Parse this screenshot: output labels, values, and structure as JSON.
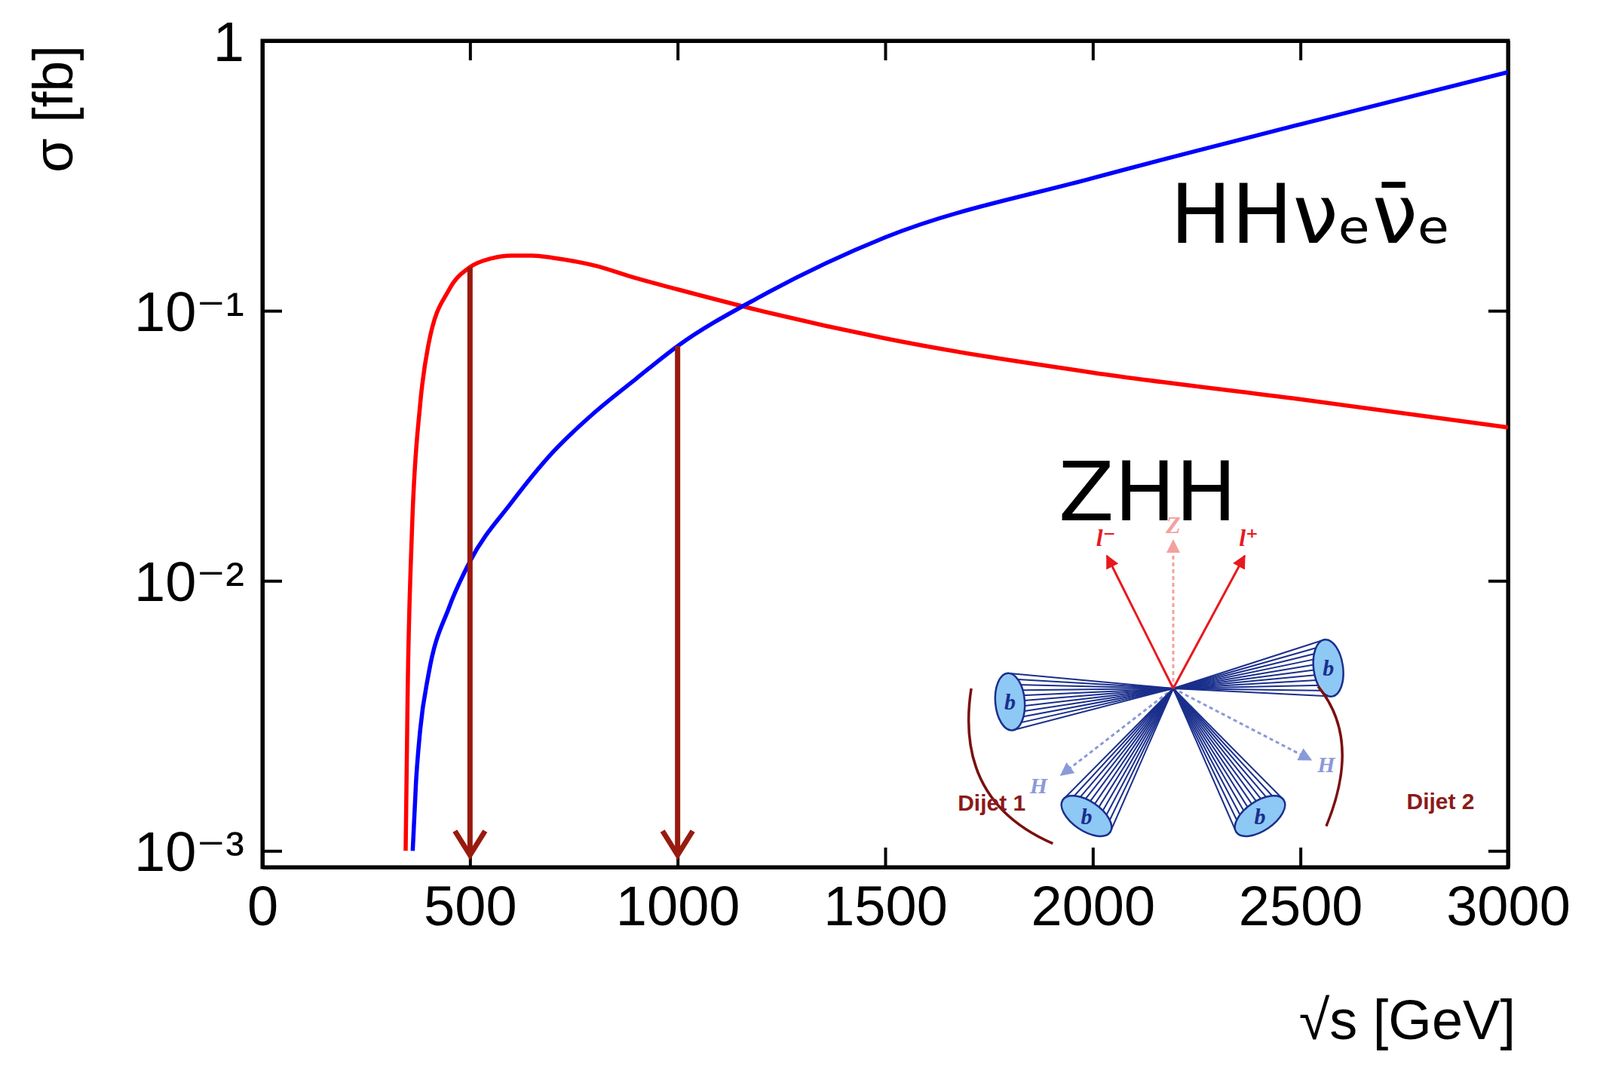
{
  "chart_data": {
    "type": "line",
    "x_label": "√s [GeV]",
    "y_label": "σ [fb]",
    "log": "y",
    "xlim": [
      0,
      3000
    ],
    "ylim": [
      0.00087,
      1
    ],
    "xticks": [
      0,
      500,
      1000,
      1500,
      2000,
      2500,
      3000
    ],
    "yticks": [
      {
        "value": 0.001,
        "label": "10⁻³"
      },
      {
        "value": 0.01,
        "label": "10⁻²"
      },
      {
        "value": 0.1,
        "label": "10⁻¹"
      },
      1
    ],
    "series": [
      {
        "name": "ZHH",
        "color": "#ff0000",
        "x": [
          345,
          350,
          360,
          380,
          400,
          450,
          500,
          550,
          600,
          650,
          700,
          800,
          900,
          1000,
          1200,
          1500,
          2000,
          2500,
          3000
        ],
        "values": [
          0.001,
          0.004,
          0.015,
          0.045,
          0.075,
          0.12,
          0.145,
          0.156,
          0.16,
          0.16,
          0.157,
          0.147,
          0.132,
          0.12,
          0.1,
          0.079,
          0.059,
          0.047,
          0.037
        ]
      },
      {
        "name": "HHνₑν̄ₑ",
        "color": "#0000ff",
        "x": [
          362,
          370,
          380,
          400,
          450,
          500,
          600,
          700,
          800,
          900,
          1000,
          1200,
          1500,
          2000,
          2500,
          3000
        ],
        "values": [
          0.001,
          0.0018,
          0.0028,
          0.0045,
          0.008,
          0.0118,
          0.0195,
          0.03,
          0.042,
          0.056,
          0.074,
          0.113,
          0.187,
          0.31,
          0.49,
          0.765
        ]
      }
    ],
    "arrows": [
      {
        "x": 500,
        "y": 0.145
      },
      {
        "x": 1000,
        "y": 0.074
      }
    ],
    "inset": {
      "z": "Z",
      "lepton_minus": "l⁻",
      "lepton_plus": "l⁺",
      "b_jets": [
        "b",
        "b",
        "b",
        "b"
      ],
      "higgs": [
        "H",
        "H"
      ],
      "dijets": [
        "Dijet 1",
        "Dijet 2"
      ]
    }
  }
}
